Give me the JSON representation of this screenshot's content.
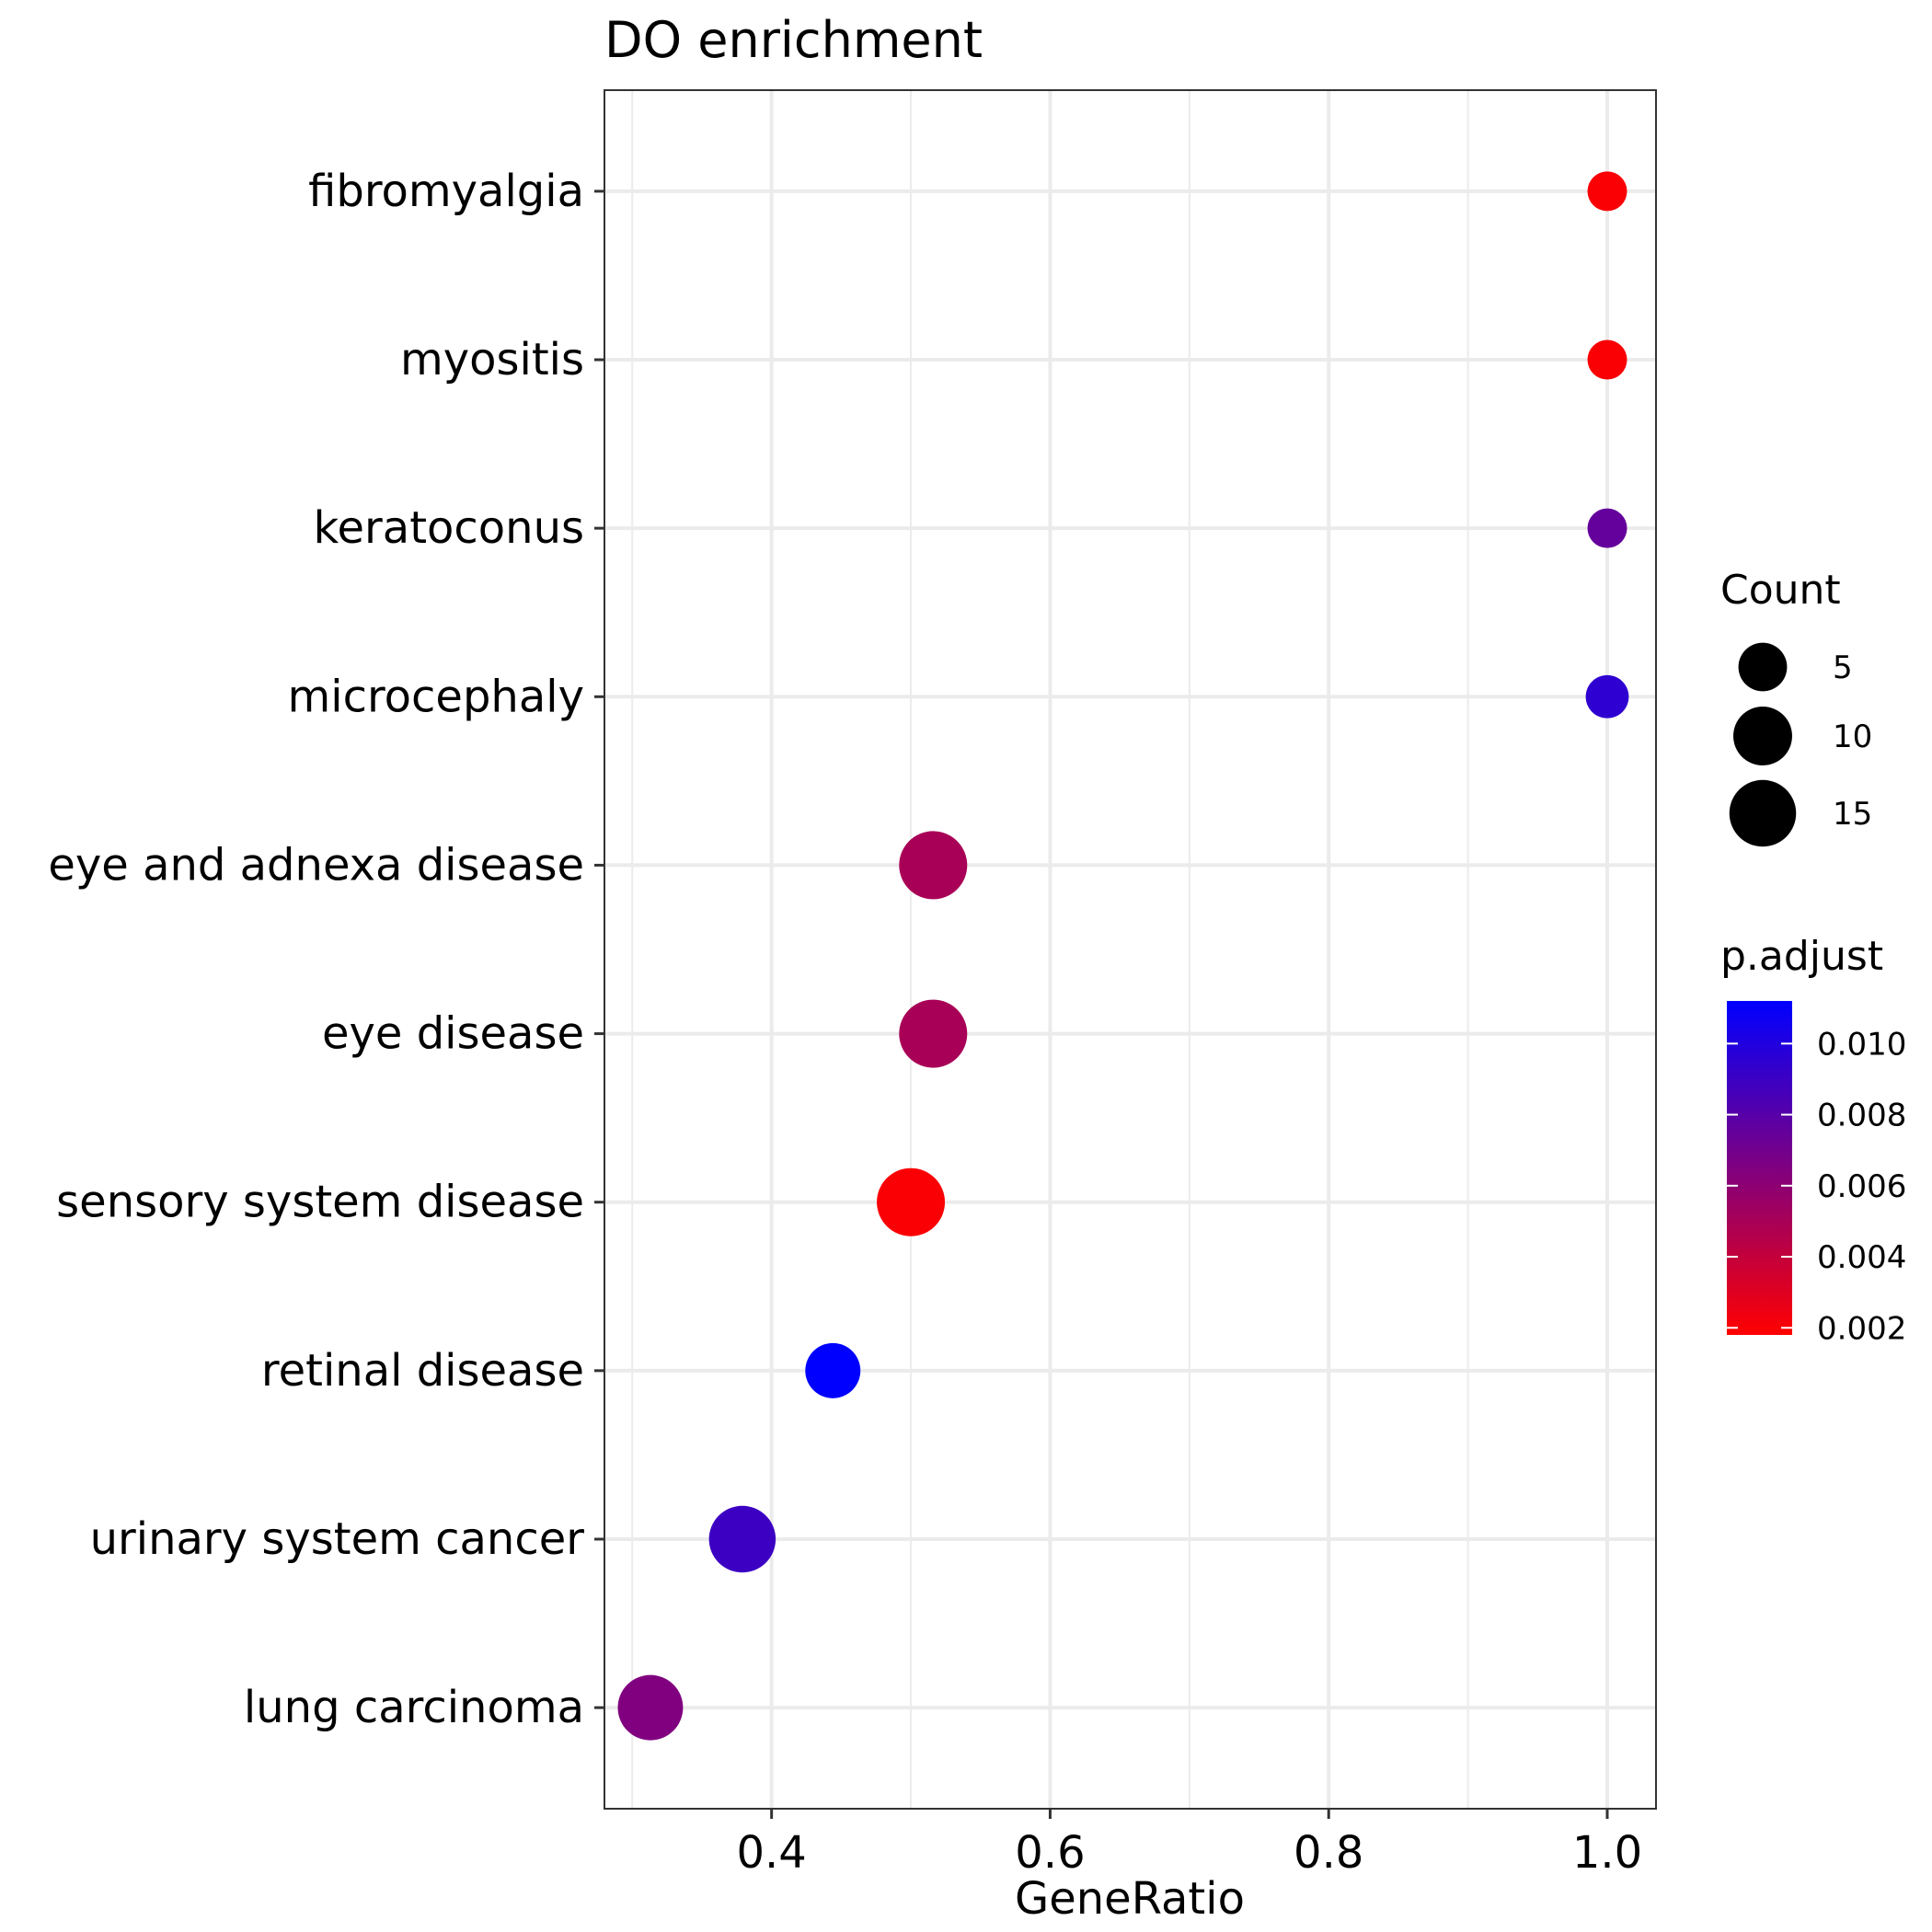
{
  "chart_data": {
    "type": "scatter",
    "title": "DO enrichment",
    "xlabel": "GeneRatio",
    "ylabel": "",
    "xlim": [
      0.28,
      1.035
    ],
    "x_ticks": [
      0.4,
      0.6,
      0.8,
      1.0
    ],
    "x_tick_labels": [
      "0.4",
      "0.6",
      "0.8",
      "1.0"
    ],
    "x_minor_ticks": [
      0.3,
      0.5,
      0.7,
      0.9
    ],
    "categories": [
      "fibromyalgia",
      "myositis",
      "keratoconus",
      "microcephaly",
      "eye and adnexa disease",
      "eye disease",
      "sensory system disease",
      "retinal disease",
      "urinary system cancer",
      "lung carcinoma"
    ],
    "points": [
      {
        "term": "fibromyalgia",
        "gene_ratio": 1.0,
        "count": 2,
        "p_adjust": 0.002
      },
      {
        "term": "myositis",
        "gene_ratio": 1.0,
        "count": 2,
        "p_adjust": 0.002
      },
      {
        "term": "keratoconus",
        "gene_ratio": 1.0,
        "count": 2,
        "p_adjust": 0.0075
      },
      {
        "term": "microcephaly",
        "gene_ratio": 1.0,
        "count": 3,
        "p_adjust": 0.0095
      },
      {
        "term": "eye and adnexa disease",
        "gene_ratio": 0.516,
        "count": 16,
        "p_adjust": 0.005
      },
      {
        "term": "eye disease",
        "gene_ratio": 0.516,
        "count": 16,
        "p_adjust": 0.005
      },
      {
        "term": "sensory system disease",
        "gene_ratio": 0.5,
        "count": 16,
        "p_adjust": 0.002
      },
      {
        "term": "retinal disease",
        "gene_ratio": 0.444,
        "count": 8,
        "p_adjust": 0.0112
      },
      {
        "term": "urinary system cancer",
        "gene_ratio": 0.379,
        "count": 15,
        "p_adjust": 0.009
      },
      {
        "term": "lung carcinoma",
        "gene_ratio": 0.313,
        "count": 14,
        "p_adjust": 0.0065
      }
    ],
    "legend_size": {
      "title": "Count",
      "values": [
        5,
        10,
        15
      ],
      "labels": [
        "5",
        "10",
        "15"
      ]
    },
    "legend_color": {
      "title": "p.adjust",
      "low_color": "#ff0000",
      "high_color": "#0000ff",
      "range": [
        0.0018,
        0.0112
      ],
      "breaks": [
        0.01,
        0.008,
        0.006,
        0.004,
        0.002
      ],
      "labels": [
        "0.010",
        "0.008",
        "0.006",
        "0.004",
        "0.002"
      ]
    },
    "grid": true,
    "legend_position": "right"
  }
}
